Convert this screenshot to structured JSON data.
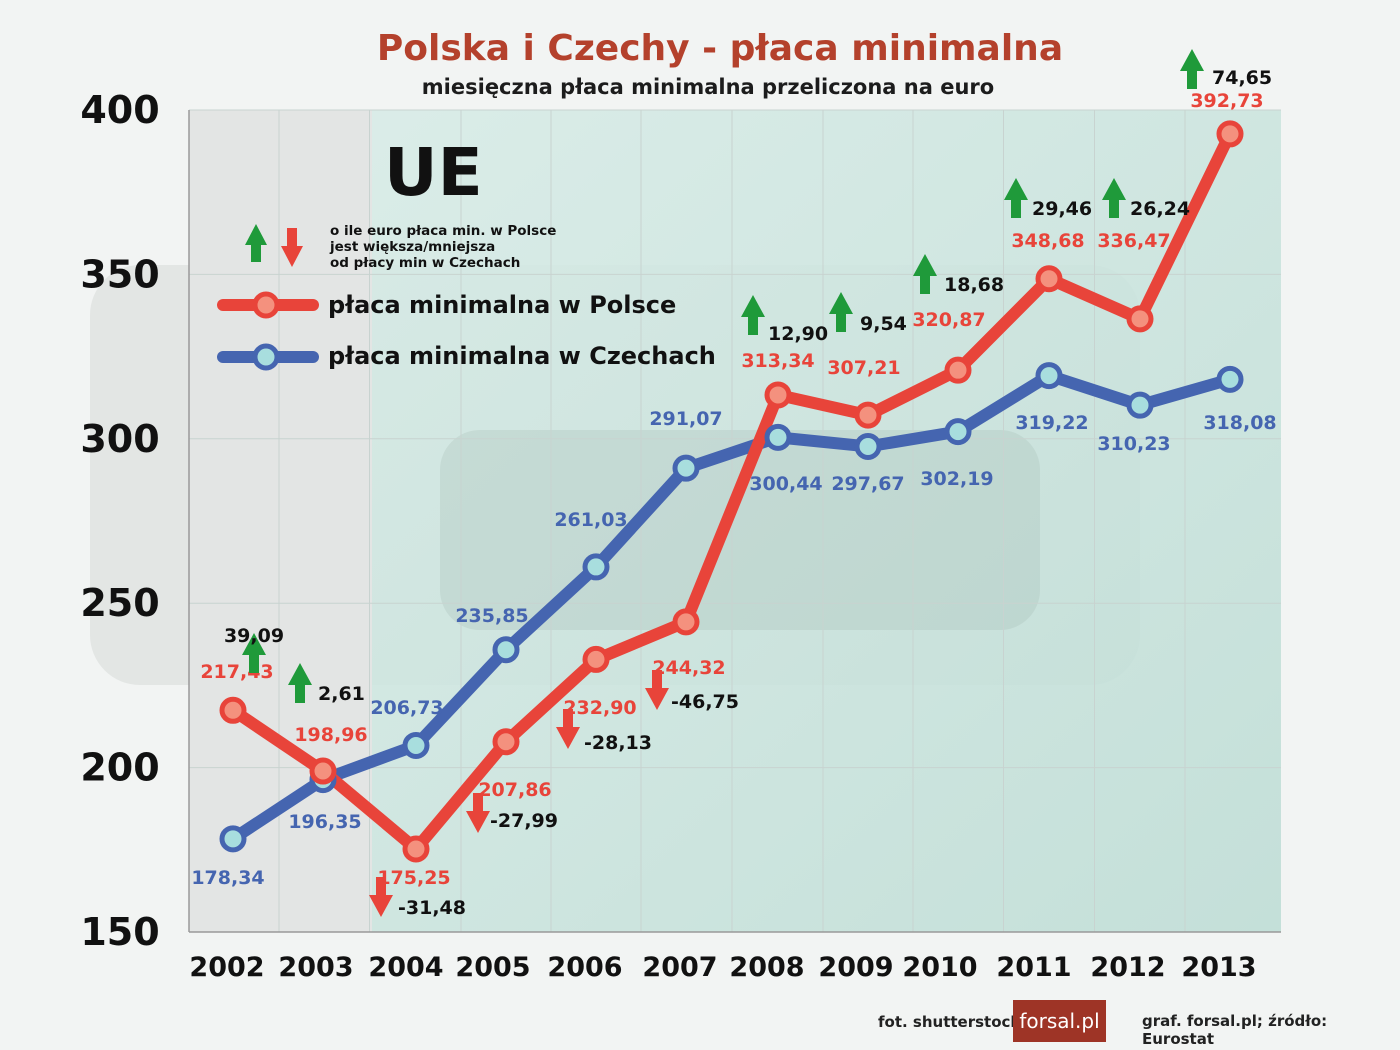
{
  "header": {
    "title": "Polska i Czechy - płaca minimalna",
    "subtitle": "miesięczna płaca minimalna przeliczona na euro"
  },
  "colors": {
    "poland": "#e8443a",
    "czech": "#4565b0",
    "arrow_up": "#1f9a3a",
    "arrow_down": "#e8443a",
    "title": "#b4412c"
  },
  "legend": {
    "ue_label": "UE",
    "arrows_note": [
      "o ile euro płaca min. w Polsce",
      "jest większa/mniejsza",
      "od płacy min w Czechach"
    ],
    "items": [
      {
        "label": "płaca minimalna w Polsce",
        "color": "#e8443a"
      },
      {
        "label": "płaca minimalna w Czechach",
        "color": "#4565b0"
      }
    ]
  },
  "footer": {
    "photo_credit": "fot. shutterstock",
    "brand": "forsal.pl",
    "source": "graf. forsal.pl;  źródło: Eurostat"
  },
  "chart_data": {
    "type": "line",
    "categories": [
      "2002",
      "2003",
      "2004",
      "2005",
      "2006",
      "2007",
      "2008",
      "2009",
      "2010",
      "2011",
      "2012",
      "2013"
    ],
    "ylim": [
      150,
      400
    ],
    "yticks": [
      "150",
      "200",
      "250",
      "300",
      "350",
      "400"
    ],
    "grid": true,
    "series": [
      {
        "name": "płaca minimalna w Polsce",
        "values": [
          217.43,
          198.96,
          175.25,
          207.86,
          232.9,
          244.32,
          313.34,
          307.21,
          320.87,
          348.68,
          336.47,
          392.73
        ],
        "labels": [
          "217,43",
          "198,96",
          "175,25",
          "207,86",
          "232,90",
          "244,32",
          "313,34",
          "307,21",
          "320,87",
          "348,68",
          "336,47",
          "392,73"
        ]
      },
      {
        "name": "płaca minimalna w Czechach",
        "values": [
          178.34,
          196.35,
          206.73,
          235.85,
          261.03,
          291.07,
          300.44,
          297.67,
          302.19,
          319.22,
          310.23,
          318.08
        ],
        "labels": [
          "178,34",
          "196,35",
          "206,73",
          "235,85",
          "261,03",
          "291,07",
          "300,44",
          "297,67",
          "302,19",
          "319,22",
          "310,23",
          "318,08"
        ]
      }
    ],
    "differences": [
      {
        "year": "2002",
        "value": 39.09,
        "label": "39,09",
        "direction": "up"
      },
      {
        "year": "2003",
        "value": 2.61,
        "label": "2,61",
        "direction": "up"
      },
      {
        "year": "2004",
        "value": -31.48,
        "label": "-31,48",
        "direction": "down"
      },
      {
        "year": "2005",
        "value": -27.99,
        "label": "-27,99",
        "direction": "down"
      },
      {
        "year": "2006",
        "value": -28.13,
        "label": "-28,13",
        "direction": "down"
      },
      {
        "year": "2007",
        "value": -46.75,
        "label": "-46,75",
        "direction": "down"
      },
      {
        "year": "2008",
        "value": 12.9,
        "label": "12,90",
        "direction": "up"
      },
      {
        "year": "2009",
        "value": 9.54,
        "label": "9,54",
        "direction": "up"
      },
      {
        "year": "2010",
        "value": 18.68,
        "label": "18,68",
        "direction": "up"
      },
      {
        "year": "2011",
        "value": 29.46,
        "label": "29,46",
        "direction": "up"
      },
      {
        "year": "2012",
        "value": 26.24,
        "label": "26,24",
        "direction": "up"
      },
      {
        "year": "2013",
        "value": 74.65,
        "label": "74,65",
        "direction": "up"
      }
    ]
  }
}
